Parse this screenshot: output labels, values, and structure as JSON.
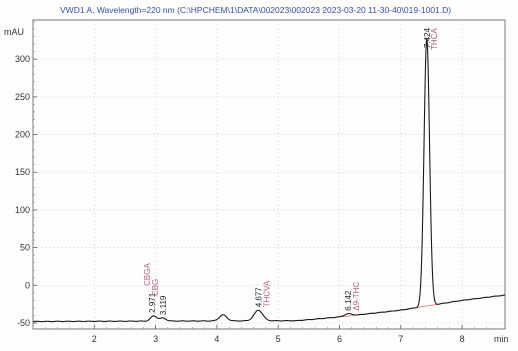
{
  "chart_data": {
    "type": "line",
    "title": "VWD1 A, Wavelength=220 nm (C:\\HPCHEM\\1\\DATA\\002023\\002023 2023-03-20 11-30-40\\019-1001.D)",
    "ylabel": "mAU",
    "xlabel": "min",
    "xlim": [
      1.0,
      8.7
    ],
    "ylim": [
      -58,
      352
    ],
    "x_ticks": [
      2,
      3,
      4,
      5,
      6,
      7,
      8
    ],
    "y_ticks": [
      -50,
      0,
      50,
      100,
      150,
      200,
      250,
      300
    ],
    "grid": true,
    "peaks": [
      {
        "rt": 2.971,
        "rt_label": "2.971",
        "height": 7,
        "width": 0.05,
        "compound": "CBGA"
      },
      {
        "rt": 3.119,
        "rt_label": "3.119",
        "height": 4,
        "width": 0.05,
        "compound": "CBG"
      },
      {
        "rt": 4.1,
        "rt_label": "",
        "height": 8,
        "width": 0.06,
        "compound": ""
      },
      {
        "rt": 4.677,
        "rt_label": "4.677",
        "height": 14,
        "width": 0.07,
        "compound": "THCVA"
      },
      {
        "rt": 6.142,
        "rt_label": "6.142",
        "height": 3,
        "width": 0.06,
        "compound": "Δ9-THC"
      },
      {
        "rt": 7.424,
        "rt_label": "7.424",
        "height": 355,
        "width": 0.045,
        "compound": "THCA"
      }
    ],
    "baseline": [
      {
        "x": 1.0,
        "y": -48
      },
      {
        "x": 5.3,
        "y": -47
      },
      {
        "x": 6.0,
        "y": -42
      },
      {
        "x": 7.0,
        "y": -33
      },
      {
        "x": 8.0,
        "y": -20
      },
      {
        "x": 8.7,
        "y": -13
      }
    ]
  }
}
